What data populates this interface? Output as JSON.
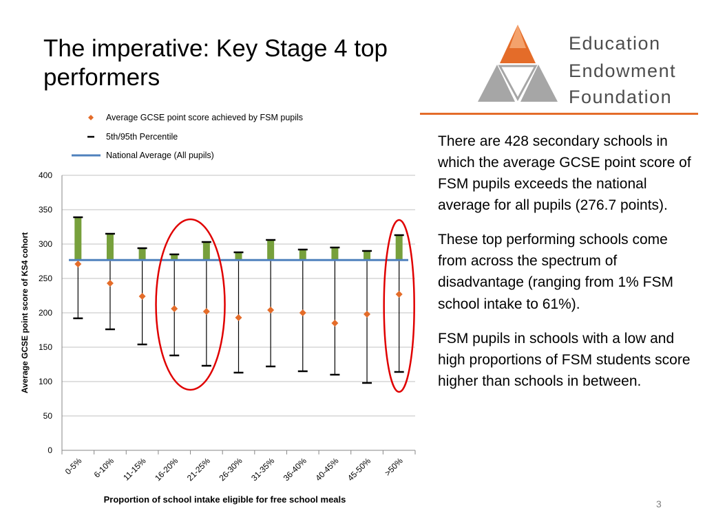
{
  "slide": {
    "title": "The imperative: Key Stage 4 top performers",
    "paragraphs": [
      "There are 428 secondary schools in which the average GCSE point score of FSM pupils exceeds the national average for all pupils (276.7 points).",
      "These top performing schools come from across the spectrum of disadvantage (ranging from 1% FSM school intake to 61%).",
      "FSM pupils in schools with a low and high proportions of FSM students score higher than schools in between."
    ],
    "page_number": "3"
  },
  "logo": {
    "lines": [
      "Education",
      "Endowment",
      "Foundation"
    ],
    "colors": {
      "orange": "#e46c29",
      "light_orange": "#f4a26c",
      "grey": "#a6a6a6",
      "text": "#4d4d4d"
    }
  },
  "colors": {
    "fsm_marker": "#e46c29",
    "bar": "#77a03c",
    "national_line": "#4f81bd",
    "circle": "#e00000",
    "grid": "#c0c0c0"
  },
  "chart_data": {
    "type": "scatter",
    "xlabel": "Proportion of school intake eligible for free school meals",
    "ylabel": "Average GCSE point score of KS4 cohort",
    "ylim": [
      0,
      400
    ],
    "yticks": [
      0,
      50,
      100,
      150,
      200,
      250,
      300,
      350,
      400
    ],
    "categories": [
      "0-5%",
      "6-10%",
      "11-15%",
      "16-20%",
      "21-25%",
      "26-30%",
      "31-35%",
      "36-40%",
      "40-45%",
      "45-50%",
      ">50%"
    ],
    "legend": [
      {
        "label": "Average GCSE point score achieved by FSM pupils",
        "marker": "diamond"
      },
      {
        "label": "5th/95th Percentile",
        "marker": "dash"
      },
      {
        "label": "National Average (All pupils)",
        "marker": "line"
      }
    ],
    "national_average": 276.7,
    "series": [
      {
        "name": "Average GCSE point score achieved by FSM pupils",
        "values": [
          271,
          243,
          224,
          206,
          202,
          193,
          204,
          200,
          185,
          198,
          227
        ]
      },
      {
        "name": "5th Percentile",
        "values": [
          192,
          176,
          154,
          138,
          123,
          113,
          122,
          115,
          110,
          98,
          114
        ]
      },
      {
        "name": "95th Percentile",
        "values": [
          339,
          315,
          294,
          285,
          303,
          288,
          306,
          292,
          295,
          290,
          313
        ]
      }
    ],
    "highlighted_categories": [
      [
        "16-20%",
        "21-25%"
      ],
      [
        ">50%"
      ]
    ],
    "grid": true,
    "legend_placement": "top-left"
  }
}
